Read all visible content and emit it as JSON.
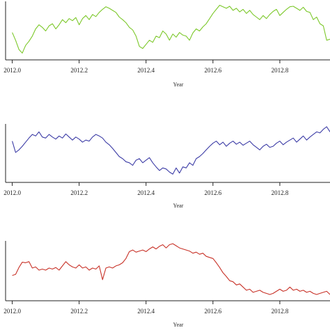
{
  "chart_data": [
    {
      "type": "line",
      "xlabel": "Year",
      "xlim": [
        2011.98,
        2012.95
      ],
      "xticks": [
        "2012.0",
        "2012.2",
        "2012.4",
        "2012.6",
        "2012.8"
      ],
      "ylim": [
        0,
        1
      ],
      "grid": false,
      "color": "#7cc82a",
      "series": [
        {
          "x": [
            2012.0,
            2012.01,
            2012.02,
            2012.03,
            2012.04,
            2012.05,
            2012.06,
            2012.07,
            2012.08,
            2012.09,
            2012.1,
            2012.11,
            2012.12,
            2012.13,
            2012.14,
            2012.15,
            2012.16,
            2012.17,
            2012.18,
            2012.19,
            2012.2,
            2012.21,
            2012.22,
            2012.23,
            2012.24,
            2012.25,
            2012.26,
            2012.27,
            2012.28,
            2012.29,
            2012.3,
            2012.31,
            2012.32,
            2012.33,
            2012.34,
            2012.35,
            2012.36,
            2012.37,
            2012.38,
            2012.39,
            2012.4,
            2012.41,
            2012.42,
            2012.43,
            2012.44,
            2012.45,
            2012.46,
            2012.47,
            2012.48,
            2012.49,
            2012.5,
            2012.51,
            2012.52,
            2012.53,
            2012.54,
            2012.55,
            2012.56,
            2012.57,
            2012.58,
            2012.59,
            2012.6,
            2012.61,
            2012.62,
            2012.63,
            2012.64,
            2012.65,
            2012.66,
            2012.67,
            2012.68,
            2012.69,
            2012.7,
            2012.71,
            2012.72,
            2012.73,
            2012.74,
            2012.75,
            2012.76,
            2012.77,
            2012.78,
            2012.79,
            2012.8,
            2012.81,
            2012.82,
            2012.83,
            2012.84,
            2012.85,
            2012.86,
            2012.87,
            2012.88,
            2012.89,
            2012.9,
            2012.91,
            2012.92,
            2012.93,
            2012.94,
            2012.95
          ],
          "y": [
            0.45,
            0.3,
            0.12,
            0.05,
            0.2,
            0.28,
            0.38,
            0.52,
            0.6,
            0.55,
            0.48,
            0.58,
            0.62,
            0.52,
            0.6,
            0.7,
            0.64,
            0.72,
            0.68,
            0.74,
            0.6,
            0.72,
            0.78,
            0.7,
            0.8,
            0.76,
            0.84,
            0.9,
            0.95,
            0.92,
            0.88,
            0.84,
            0.75,
            0.7,
            0.64,
            0.55,
            0.5,
            0.38,
            0.18,
            0.14,
            0.22,
            0.3,
            0.26,
            0.38,
            0.35,
            0.48,
            0.42,
            0.3,
            0.42,
            0.36,
            0.45,
            0.4,
            0.38,
            0.3,
            0.44,
            0.52,
            0.48,
            0.56,
            0.62,
            0.72,
            0.82,
            0.9,
            0.98,
            0.95,
            0.92,
            0.96,
            0.88,
            0.92,
            0.85,
            0.9,
            0.82,
            0.88,
            0.8,
            0.75,
            0.7,
            0.78,
            0.72,
            0.8,
            0.86,
            0.9,
            0.78,
            0.84,
            0.9,
            0.95,
            0.96,
            0.92,
            0.88,
            0.94,
            0.86,
            0.84,
            0.7,
            0.75,
            0.62,
            0.58,
            0.3,
            0.32
          ]
        }
      ]
    },
    {
      "type": "line",
      "xlabel": "Year",
      "xlim": [
        2011.98,
        2012.95
      ],
      "xticks": [
        "2012.0",
        "2012.2",
        "2012.4",
        "2012.6",
        "2012.8"
      ],
      "ylim": [
        0,
        1
      ],
      "grid": false,
      "color": "#3c3ca6",
      "series": [
        {
          "x": [
            2012.0,
            2012.01,
            2012.02,
            2012.03,
            2012.04,
            2012.05,
            2012.06,
            2012.07,
            2012.08,
            2012.09,
            2012.1,
            2012.11,
            2012.12,
            2012.13,
            2012.14,
            2012.15,
            2012.16,
            2012.17,
            2012.18,
            2012.19,
            2012.2,
            2012.21,
            2012.22,
            2012.23,
            2012.24,
            2012.25,
            2012.26,
            2012.27,
            2012.28,
            2012.29,
            2012.3,
            2012.31,
            2012.32,
            2012.33,
            2012.34,
            2012.35,
            2012.36,
            2012.37,
            2012.38,
            2012.39,
            2012.4,
            2012.41,
            2012.42,
            2012.43,
            2012.44,
            2012.45,
            2012.46,
            2012.47,
            2012.48,
            2012.49,
            2012.5,
            2012.51,
            2012.52,
            2012.53,
            2012.54,
            2012.55,
            2012.56,
            2012.57,
            2012.58,
            2012.59,
            2012.6,
            2012.61,
            2012.62,
            2012.63,
            2012.64,
            2012.65,
            2012.66,
            2012.67,
            2012.68,
            2012.69,
            2012.7,
            2012.71,
            2012.72,
            2012.73,
            2012.74,
            2012.75,
            2012.76,
            2012.77,
            2012.78,
            2012.79,
            2012.8,
            2012.81,
            2012.82,
            2012.83,
            2012.84,
            2012.85,
            2012.86,
            2012.87,
            2012.88,
            2012.89,
            2012.9,
            2012.91,
            2012.92,
            2012.93,
            2012.94,
            2012.95
          ],
          "y": [
            0.72,
            0.5,
            0.55,
            0.62,
            0.7,
            0.78,
            0.85,
            0.82,
            0.9,
            0.8,
            0.78,
            0.85,
            0.8,
            0.76,
            0.82,
            0.78,
            0.86,
            0.8,
            0.74,
            0.8,
            0.76,
            0.7,
            0.74,
            0.72,
            0.8,
            0.85,
            0.82,
            0.78,
            0.7,
            0.65,
            0.58,
            0.5,
            0.42,
            0.38,
            0.32,
            0.3,
            0.25,
            0.35,
            0.38,
            0.3,
            0.35,
            0.4,
            0.3,
            0.22,
            0.15,
            0.2,
            0.18,
            0.12,
            0.08,
            0.2,
            0.1,
            0.22,
            0.2,
            0.3,
            0.25,
            0.38,
            0.42,
            0.48,
            0.55,
            0.62,
            0.68,
            0.72,
            0.65,
            0.7,
            0.62,
            0.68,
            0.72,
            0.66,
            0.7,
            0.64,
            0.68,
            0.72,
            0.65,
            0.6,
            0.55,
            0.62,
            0.66,
            0.6,
            0.62,
            0.68,
            0.72,
            0.65,
            0.7,
            0.74,
            0.78,
            0.7,
            0.76,
            0.82,
            0.74,
            0.8,
            0.85,
            0.9,
            0.88,
            0.95,
            1.0,
            0.9
          ]
        }
      ]
    },
    {
      "type": "line",
      "xlabel": "Year",
      "xlim": [
        2011.98,
        2012.95
      ],
      "xticks": [
        "2012.0",
        "2012.2",
        "2012.4",
        "2012.6",
        "2012.8"
      ],
      "ylim": [
        0,
        1
      ],
      "grid": false,
      "color": "#c83228",
      "series": [
        {
          "x": [
            2012.0,
            2012.01,
            2012.02,
            2012.03,
            2012.04,
            2012.05,
            2012.06,
            2012.07,
            2012.08,
            2012.09,
            2012.1,
            2012.11,
            2012.12,
            2012.13,
            2012.14,
            2012.15,
            2012.16,
            2012.17,
            2012.18,
            2012.19,
            2012.2,
            2012.21,
            2012.22,
            2012.23,
            2012.24,
            2012.25,
            2012.26,
            2012.27,
            2012.28,
            2012.29,
            2012.3,
            2012.31,
            2012.32,
            2012.33,
            2012.34,
            2012.35,
            2012.36,
            2012.37,
            2012.38,
            2012.39,
            2012.4,
            2012.41,
            2012.42,
            2012.43,
            2012.44,
            2012.45,
            2012.46,
            2012.47,
            2012.48,
            2012.49,
            2012.5,
            2012.51,
            2012.52,
            2012.53,
            2012.54,
            2012.55,
            2012.56,
            2012.57,
            2012.58,
            2012.59,
            2012.6,
            2012.61,
            2012.62,
            2012.63,
            2012.64,
            2012.65,
            2012.66,
            2012.67,
            2012.68,
            2012.69,
            2012.7,
            2012.71,
            2012.72,
            2012.73,
            2012.74,
            2012.75,
            2012.76,
            2012.77,
            2012.78,
            2012.79,
            2012.8,
            2012.81,
            2012.82,
            2012.83,
            2012.84,
            2012.85,
            2012.86,
            2012.87,
            2012.88,
            2012.89,
            2012.9,
            2012.91,
            2012.92,
            2012.93,
            2012.94,
            2012.95
          ],
          "y": [
            0.4,
            0.42,
            0.55,
            0.65,
            0.64,
            0.66,
            0.54,
            0.56,
            0.5,
            0.52,
            0.5,
            0.54,
            0.52,
            0.55,
            0.5,
            0.58,
            0.66,
            0.6,
            0.56,
            0.54,
            0.6,
            0.54,
            0.56,
            0.5,
            0.54,
            0.52,
            0.58,
            0.32,
            0.54,
            0.56,
            0.54,
            0.58,
            0.6,
            0.64,
            0.72,
            0.85,
            0.88,
            0.84,
            0.86,
            0.88,
            0.85,
            0.9,
            0.94,
            0.9,
            0.95,
            0.98,
            0.92,
            0.98,
            1.0,
            0.96,
            0.92,
            0.9,
            0.88,
            0.86,
            0.82,
            0.84,
            0.8,
            0.82,
            0.76,
            0.74,
            0.72,
            0.64,
            0.55,
            0.45,
            0.38,
            0.3,
            0.28,
            0.22,
            0.24,
            0.18,
            0.12,
            0.14,
            0.08,
            0.1,
            0.12,
            0.08,
            0.06,
            0.04,
            0.06,
            0.1,
            0.14,
            0.1,
            0.12,
            0.18,
            0.12,
            0.14,
            0.1,
            0.12,
            0.08,
            0.1,
            0.06,
            0.04,
            0.06,
            0.08,
            0.1,
            0.04
          ]
        }
      ]
    }
  ]
}
